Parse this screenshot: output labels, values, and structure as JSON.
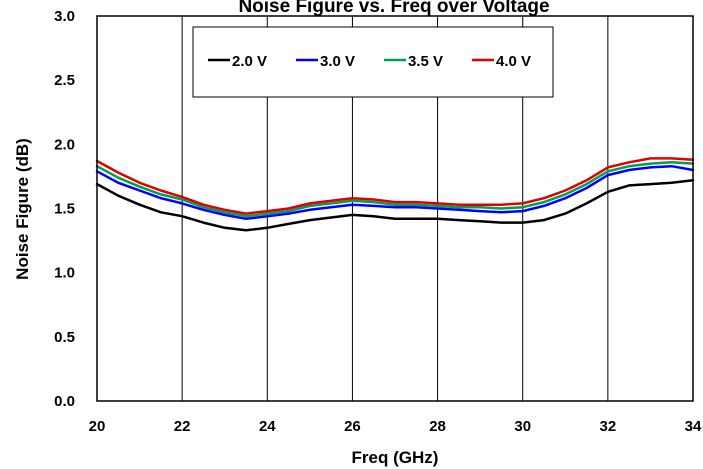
{
  "chart_data": {
    "type": "line",
    "title": "Noise Figure vs. Freq over Voltage",
    "xlabel": "Freq (GHz)",
    "ylabel": "Noise Figure (dB)",
    "xlim": [
      20,
      34
    ],
    "ylim": [
      0.0,
      3.0
    ],
    "xticks": [
      "20",
      "22",
      "24",
      "26",
      "28",
      "30",
      "32",
      "34"
    ],
    "yticks": [
      "0.0",
      "0.5",
      "1.0",
      "1.5",
      "2.0",
      "2.5",
      "3.0"
    ],
    "grid": "vertical",
    "legend_position": "top-center",
    "x": [
      20,
      20.5,
      21,
      21.5,
      22,
      22.5,
      23,
      23.5,
      24,
      24.5,
      25,
      25.5,
      26,
      26.5,
      27,
      27.5,
      28,
      28.5,
      29,
      29.5,
      30,
      30.5,
      31,
      31.5,
      32,
      32.5,
      33,
      33.5,
      34
    ],
    "series": [
      {
        "name": "2.0 V",
        "color": "#000000",
        "values": [
          1.69,
          1.6,
          1.53,
          1.47,
          1.44,
          1.39,
          1.35,
          1.33,
          1.35,
          1.38,
          1.41,
          1.43,
          1.45,
          1.44,
          1.42,
          1.42,
          1.42,
          1.41,
          1.4,
          1.39,
          1.39,
          1.41,
          1.46,
          1.54,
          1.63,
          1.68,
          1.69,
          1.7,
          1.72
        ]
      },
      {
        "name": "3.0 V",
        "color": "#0000ff",
        "values": [
          1.79,
          1.7,
          1.64,
          1.58,
          1.54,
          1.49,
          1.45,
          1.42,
          1.44,
          1.46,
          1.49,
          1.51,
          1.53,
          1.52,
          1.51,
          1.51,
          1.5,
          1.49,
          1.48,
          1.47,
          1.48,
          1.52,
          1.58,
          1.66,
          1.76,
          1.8,
          1.82,
          1.83,
          1.8
        ]
      },
      {
        "name": "3.5 V",
        "color": "#00a050",
        "values": [
          1.83,
          1.74,
          1.67,
          1.61,
          1.57,
          1.51,
          1.47,
          1.44,
          1.46,
          1.48,
          1.52,
          1.54,
          1.56,
          1.55,
          1.53,
          1.53,
          1.52,
          1.51,
          1.51,
          1.5,
          1.51,
          1.55,
          1.61,
          1.69,
          1.79,
          1.83,
          1.85,
          1.86,
          1.85
        ]
      },
      {
        "name": "4.0 V",
        "color": "#e00000",
        "values": [
          1.87,
          1.78,
          1.7,
          1.64,
          1.59,
          1.53,
          1.49,
          1.46,
          1.48,
          1.5,
          1.54,
          1.56,
          1.58,
          1.57,
          1.55,
          1.55,
          1.54,
          1.53,
          1.53,
          1.53,
          1.54,
          1.58,
          1.64,
          1.72,
          1.82,
          1.86,
          1.89,
          1.89,
          1.88
        ]
      }
    ]
  }
}
